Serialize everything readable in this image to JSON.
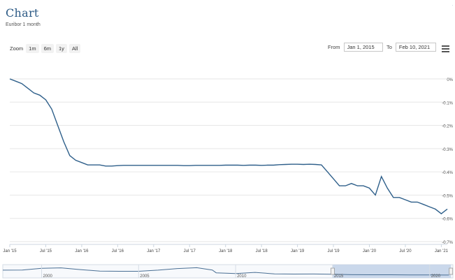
{
  "title": "Chart",
  "subtitle": "Euribor 1 month",
  "zoom": {
    "label": "Zoom",
    "buttons": [
      "1m",
      "6m",
      "1y",
      "All"
    ]
  },
  "range": {
    "from_label": "From",
    "from_value": "Jan 1, 2015",
    "to_label": "To",
    "to_value": "Feb 10, 2021"
  },
  "menu_icon": "hamburger-menu-icon",
  "colors": {
    "line": "#2e5f8a",
    "navigator_fill": "#c2d2e8",
    "title": "#2c5a85"
  },
  "chart_data": {
    "type": "line",
    "series": [
      {
        "x": [
          "2015-01",
          "2015-02",
          "2015-03",
          "2015-04",
          "2015-05",
          "2015-06",
          "2015-07",
          "2015-08",
          "2015-09",
          "2015-10",
          "2015-11",
          "2015-12",
          "2016-01",
          "2016-02",
          "2016-03",
          "2016-04",
          "2016-05",
          "2016-06",
          "2016-07",
          "2016-08",
          "2016-09",
          "2016-10",
          "2016-11",
          "2016-12",
          "2017-01",
          "2017-02",
          "2017-03",
          "2017-04",
          "2017-05",
          "2017-06",
          "2017-07",
          "2017-08",
          "2017-09",
          "2017-10",
          "2017-11",
          "2017-12",
          "2018-01",
          "2018-02",
          "2018-03",
          "2018-04",
          "2018-05",
          "2018-06",
          "2018-07",
          "2018-08",
          "2018-09",
          "2018-10",
          "2018-11",
          "2018-12",
          "2019-01",
          "2019-02",
          "2019-03",
          "2019-04",
          "2019-05",
          "2019-06",
          "2019-07",
          "2019-08",
          "2019-09",
          "2019-10",
          "2019-11",
          "2019-12",
          "2020-01",
          "2020-02",
          "2020-03",
          "2020-04",
          "2020-05",
          "2020-06",
          "2020-07",
          "2020-08",
          "2020-09",
          "2020-10",
          "2020-11",
          "2020-12",
          "2021-01",
          "2021-02"
        ],
        "values": [
          0.0,
          -0.01,
          -0.02,
          -0.04,
          -0.06,
          -0.07,
          -0.09,
          -0.13,
          -0.2,
          -0.27,
          -0.33,
          -0.35,
          -0.36,
          -0.37,
          -0.37,
          -0.37,
          -0.375,
          -0.375,
          -0.373,
          -0.372,
          -0.372,
          -0.372,
          -0.372,
          -0.372,
          -0.372,
          -0.372,
          -0.372,
          -0.372,
          -0.372,
          -0.373,
          -0.373,
          -0.372,
          -0.372,
          -0.372,
          -0.372,
          -0.372,
          -0.371,
          -0.371,
          -0.371,
          -0.372,
          -0.371,
          -0.371,
          -0.372,
          -0.371,
          -0.371,
          -0.369,
          -0.368,
          -0.367,
          -0.367,
          -0.368,
          -0.367,
          -0.368,
          -0.37,
          -0.4,
          -0.43,
          -0.46,
          -0.46,
          -0.45,
          -0.46,
          -0.46,
          -0.47,
          -0.5,
          -0.42,
          -0.47,
          -0.51,
          -0.51,
          -0.52,
          -0.53,
          -0.53,
          -0.54,
          -0.55,
          -0.56,
          -0.58,
          -0.56
        ]
      }
    ],
    "ylim": [
      -0.7,
      0.0
    ],
    "y_ticks": [
      "0%",
      "-0.1%",
      "-0.2%",
      "-0.3%",
      "-0.4%",
      "-0.5%",
      "-0.6%",
      "-0.7%"
    ],
    "x_ticks": [
      "Jan '15",
      "Jul '15",
      "Jan '16",
      "Jul '16",
      "Jan '17",
      "Jul '17",
      "Jan '18",
      "Jul '18",
      "Jan '19",
      "Jul '19",
      "Jan '20",
      "Jul '20",
      "Jan '21"
    ],
    "grid": true,
    "navigator": {
      "x_labels": [
        "2000",
        "2005",
        "2010",
        "2015",
        "2020"
      ],
      "selected_range": [
        "2015-01",
        "2021-02"
      ]
    }
  }
}
